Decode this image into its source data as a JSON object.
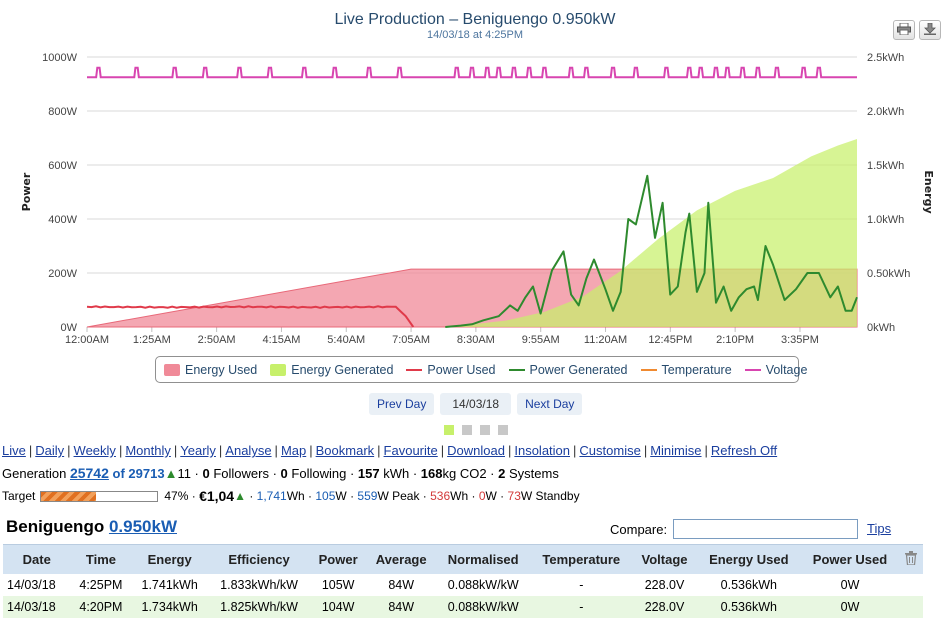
{
  "chart": {
    "title": "Live Production – Beniguengo 0.950kW",
    "subtitle": "14/03/18 at 4:25PM",
    "y_left_title": "Power",
    "y_right_title": "Energy",
    "print_icon": "printer-icon",
    "download_icon": "download-icon"
  },
  "chart_data": {
    "type": "line",
    "x_ticks": [
      "12:00AM",
      "1:25AM",
      "2:50AM",
      "4:15AM",
      "5:40AM",
      "7:05AM",
      "8:30AM",
      "9:55AM",
      "11:20AM",
      "12:45PM",
      "2:10PM",
      "3:35PM"
    ],
    "y_left_ticks": [
      "0W",
      "200W",
      "400W",
      "600W",
      "800W",
      "1000W"
    ],
    "y_right_ticks": [
      "0kWh",
      "0.50kWh",
      "1.0kWh",
      "1.5kWh",
      "2.0kWh",
      "2.5kWh"
    ],
    "ylim_left": [
      0,
      1000
    ],
    "ylim_right": [
      0,
      2.5
    ],
    "xlim_minutes": [
      0,
      1010
    ],
    "grid": true,
    "legend_position": "bottom",
    "colors": {
      "energy_used": "#f08a98",
      "energy_generated": "#c7f06b",
      "power_used": "#e03a4a",
      "power_generated": "#2e8a2e",
      "temperature": "#f08a30",
      "voltage": "#d845b0"
    },
    "series": [
      {
        "name": "Energy Used",
        "axis": "right",
        "kind": "area",
        "x": [
          0,
          425,
          1010
        ],
        "y": [
          0,
          0.536,
          0.536
        ]
      },
      {
        "name": "Energy Generated",
        "axis": "right",
        "kind": "area",
        "x": [
          470,
          500,
          550,
          600,
          650,
          700,
          750,
          800,
          850,
          900,
          950,
          985,
          1010
        ],
        "y": [
          0,
          0.02,
          0.06,
          0.14,
          0.28,
          0.52,
          0.82,
          1.08,
          1.26,
          1.38,
          1.58,
          1.68,
          1.741
        ]
      },
      {
        "name": "Power Used",
        "axis": "left",
        "kind": "line",
        "x": [
          0,
          100,
          200,
          300,
          405,
          418,
          428
        ],
        "y": [
          75,
          73,
          75,
          73,
          75,
          40,
          0
        ]
      },
      {
        "name": "Power Generated",
        "axis": "left",
        "kind": "line",
        "x": [
          470,
          490,
          505,
          520,
          540,
          555,
          565,
          575,
          585,
          595,
          610,
          625,
          635,
          645,
          655,
          665,
          680,
          690,
          700,
          710,
          720,
          735,
          745,
          755,
          765,
          775,
          785,
          790,
          800,
          810,
          815,
          825,
          835,
          845,
          855,
          865,
          875,
          880,
          890,
          900,
          915,
          930,
          945,
          960,
          975,
          985,
          995,
          1003,
          1010
        ],
        "y": [
          0,
          5,
          10,
          25,
          40,
          80,
          60,
          110,
          150,
          50,
          210,
          280,
          120,
          80,
          180,
          250,
          140,
          60,
          130,
          400,
          380,
          560,
          330,
          460,
          120,
          150,
          350,
          420,
          130,
          200,
          460,
          90,
          150,
          60,
          110,
          140,
          150,
          100,
          300,
          230,
          100,
          140,
          200,
          200,
          110,
          150,
          60,
          60,
          110
        ]
      },
      {
        "name": "Temperature",
        "axis": "left",
        "kind": "line",
        "x": [],
        "y": []
      },
      {
        "name": "Voltage",
        "axis": "left",
        "kind": "line",
        "x": [
          0,
          1010
        ],
        "y": [
          925,
          925
        ]
      }
    ]
  },
  "legend": {
    "items": [
      {
        "label": "Energy Used",
        "kind": "box",
        "color": "#f08a98"
      },
      {
        "label": "Energy Generated",
        "kind": "box",
        "color": "#c7f06b"
      },
      {
        "label": "Power Used",
        "kind": "line",
        "color": "#e03a4a"
      },
      {
        "label": "Power Generated",
        "kind": "line",
        "color": "#2e8a2e"
      },
      {
        "label": "Temperature",
        "kind": "line",
        "color": "#f08a30"
      },
      {
        "label": "Voltage",
        "kind": "line",
        "color": "#d845b0"
      }
    ]
  },
  "daynav": {
    "prev": "Prev Day",
    "date": "14/03/18",
    "next": "Next Day"
  },
  "menu": {
    "links": [
      "Live",
      "Daily",
      "Weekly",
      "Monthly",
      "Yearly",
      "Analyse",
      "Map",
      "Bookmark",
      "Favourite",
      "Download",
      "Insolation",
      "Customise",
      "Minimise",
      "Refresh Off"
    ]
  },
  "stats": {
    "generation_label": "Generation",
    "rank": "25742",
    "of_total": "of 29713",
    "trend": "11",
    "followers_count": "0",
    "followers_label": "Followers",
    "following_count": "0",
    "following_label": "Following",
    "kwh_value": "157",
    "kwh_label": "kWh",
    "co2_value": "168",
    "co2_label": "kg CO2",
    "systems_count": "2",
    "systems_label": "Systems"
  },
  "target": {
    "label": "Target",
    "progress_fraction": 0.47,
    "percent": "47%",
    "money": "€1,04",
    "energy_value": "1,741",
    "energy_unit": "Wh",
    "power_value": "105",
    "power_unit": "W",
    "peak_value": "559",
    "peak_label": "W Peak",
    "used_value": "536",
    "used_unit": "Wh",
    "export_value": "0",
    "export_unit": "W",
    "standby_value": "73",
    "standby_label": "W Standby"
  },
  "system": {
    "name": "Beniguengo",
    "size": "0.950kW",
    "compare_label": "Compare:",
    "compare_value": "",
    "tips": "Tips"
  },
  "table": {
    "headers": [
      "Date",
      "Time",
      "Energy",
      "Efficiency",
      "Power",
      "Average",
      "Normalised",
      "Temperature",
      "Voltage",
      "Energy Used",
      "Power Used"
    ],
    "rows": [
      [
        "14/03/18",
        "4:25PM",
        "1.741kWh",
        "1.833kWh/kW",
        "105W",
        "84W",
        "0.088kW/kW",
        "-",
        "228.0V",
        "0.536kWh",
        "0W"
      ],
      [
        "14/03/18",
        "4:20PM",
        "1.734kWh",
        "1.825kWh/kW",
        "104W",
        "84W",
        "0.088kW/kW",
        "-",
        "228.0V",
        "0.536kWh",
        "0W"
      ]
    ]
  }
}
